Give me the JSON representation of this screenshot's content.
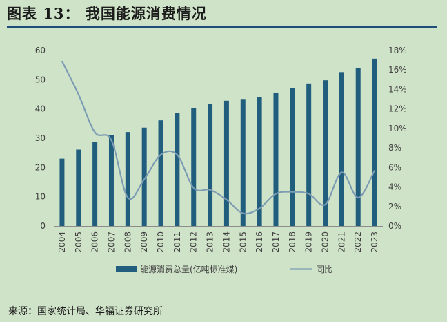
{
  "header": {
    "title": "图表 13： 我国能源消费情况"
  },
  "footer": {
    "source": "来源：国家统计局、华福证券研究所"
  },
  "colors": {
    "bar": "#215e7d",
    "line": "#7c9cb3",
    "rule": "#1f4e79"
  },
  "chart_data": {
    "type": "bar",
    "title": "",
    "categories": [
      "2004",
      "2005",
      "2006",
      "2007",
      "2008",
      "2009",
      "2010",
      "2011",
      "2012",
      "2013",
      "2014",
      "2015",
      "2016",
      "2017",
      "2018",
      "2019",
      "2020",
      "2021",
      "2022",
      "2023"
    ],
    "series": [
      {
        "name": "能源消费总量(亿吨标准煤)",
        "type": "bar",
        "axis": "left",
        "values": [
          23.0,
          26.1,
          28.6,
          31.1,
          32.1,
          33.6,
          36.1,
          38.7,
          40.2,
          41.7,
          42.8,
          43.4,
          44.1,
          45.6,
          47.2,
          48.7,
          49.8,
          52.6,
          54.1,
          57.2
        ]
      },
      {
        "name": "同比",
        "type": "line",
        "axis": "right",
        "values": [
          16.9,
          13.5,
          9.6,
          8.8,
          2.9,
          4.8,
          7.3,
          7.3,
          3.9,
          3.7,
          2.7,
          1.3,
          1.8,
          3.3,
          3.5,
          3.3,
          2.2,
          5.5,
          2.9,
          5.7
        ]
      }
    ],
    "ylim_left": [
      0,
      60
    ],
    "yticks_left": [
      "0",
      "10",
      "20",
      "30",
      "40",
      "50",
      "60"
    ],
    "ylim_right": [
      0,
      18
    ],
    "yticks_right": [
      "0%",
      "2%",
      "4%",
      "6%",
      "8%",
      "10%",
      "12%",
      "14%",
      "16%",
      "18%"
    ],
    "legend_position": "bottom",
    "grid": false
  }
}
